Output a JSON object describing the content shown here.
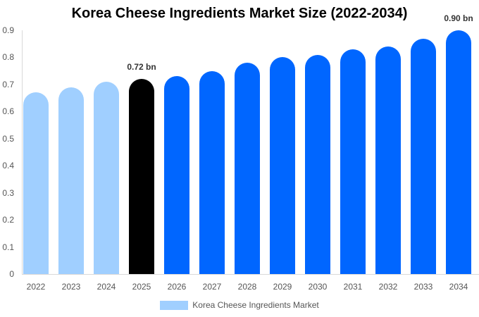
{
  "chart_data": {
    "type": "bar",
    "title": "Korea Cheese Ingredients Market Size (2022-2034)",
    "xlabel": "",
    "ylabel": "",
    "ylim": [
      0,
      0.9
    ],
    "yticks": [
      "0",
      "0.1",
      "0.2",
      "0.3",
      "0.4",
      "0.5",
      "0.6",
      "0.7",
      "0.8",
      "0.9"
    ],
    "categories": [
      "2022",
      "2023",
      "2024",
      "2025",
      "2026",
      "2027",
      "2028",
      "2029",
      "2030",
      "2031",
      "2032",
      "2033",
      "2034"
    ],
    "series": [
      {
        "name": "Korea Cheese Ingredients Market",
        "values": [
          0.67,
          0.69,
          0.71,
          0.72,
          0.73,
          0.75,
          0.78,
          0.8,
          0.81,
          0.83,
          0.84,
          0.87,
          0.9
        ]
      }
    ],
    "bar_colors": [
      "#a0cfff",
      "#a0cfff",
      "#a0cfff",
      "#000000",
      "#0066ff",
      "#0066ff",
      "#0066ff",
      "#0066ff",
      "#0066ff",
      "#0066ff",
      "#0066ff",
      "#0066ff",
      "#0066ff"
    ],
    "annotations": [
      {
        "category": "2025",
        "text": "0.72 bn"
      },
      {
        "category": "2034",
        "text": "0.90 bn"
      }
    ],
    "legend": {
      "position": "bottom",
      "label": "Korea Cheese Ingredients Market",
      "color": "#a0cfff"
    },
    "grid": false
  }
}
